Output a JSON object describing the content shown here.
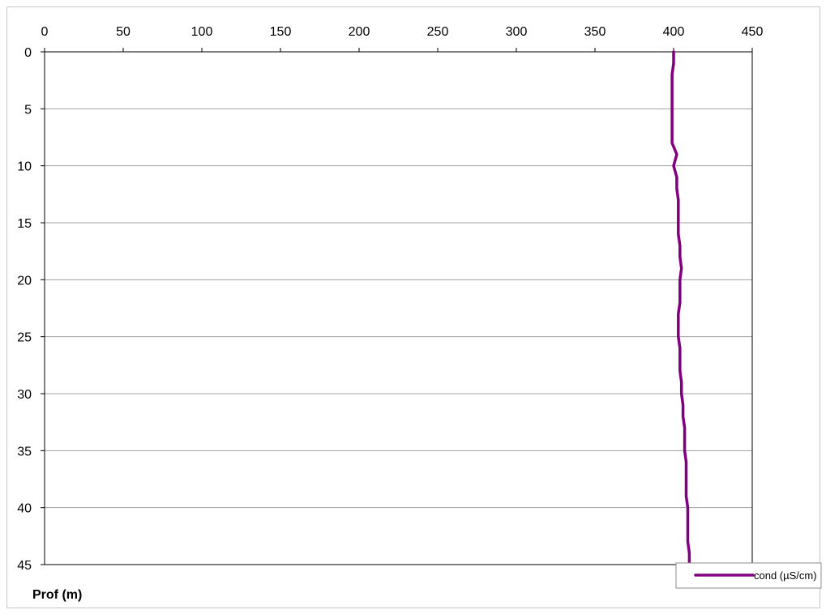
{
  "chart_data": {
    "type": "line",
    "orientation": "depth-profile",
    "xlabel": "",
    "ylabel": "Prof (m)",
    "xlim": [
      0,
      450
    ],
    "ylim": [
      0,
      45
    ],
    "x_axis_position": "top",
    "y_inverted": true,
    "x_ticks": [
      0,
      50,
      100,
      150,
      200,
      250,
      300,
      350,
      400,
      450
    ],
    "y_ticks": [
      0,
      5,
      10,
      15,
      20,
      25,
      30,
      35,
      40,
      45
    ],
    "grid": "horizontal",
    "legend_position": "bottom-right",
    "series": [
      {
        "name": "cond (µS/cm)",
        "color": "#800080",
        "x": [
          400,
          400,
          399,
          399,
          399,
          399,
          399,
          399,
          399,
          402,
          400,
          402,
          402,
          403,
          403,
          403,
          403,
          404,
          404,
          405,
          404,
          404,
          404,
          403,
          403,
          403,
          404,
          404,
          404,
          405,
          405,
          406,
          406,
          407,
          407,
          407,
          408,
          408,
          408,
          408,
          409,
          409,
          409,
          409,
          410,
          410
        ],
        "y": [
          0,
          1,
          2,
          3,
          4,
          5,
          6,
          7,
          8,
          9,
          10,
          11,
          12,
          13,
          14,
          15,
          16,
          17,
          18,
          19,
          20,
          21,
          22,
          23,
          24,
          25,
          26,
          27,
          28,
          29,
          30,
          31,
          32,
          33,
          34,
          35,
          36,
          37,
          38,
          39,
          40,
          41,
          42,
          43,
          44,
          45
        ]
      }
    ]
  }
}
